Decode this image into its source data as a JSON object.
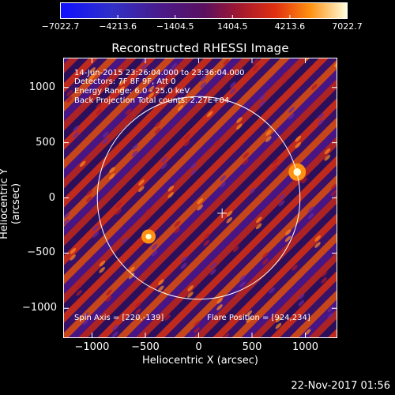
{
  "chart_data": {
    "type": "heatmap",
    "title": "Reconstructed RHESSI Image",
    "xlabel": "Heliocentric X (arcsec)",
    "ylabel": "Heliocentric Y (arcsec)",
    "xlim": [
      -1270,
      1300
    ],
    "ylim": [
      -1270,
      1270
    ],
    "xticks": [
      -1000,
      -500,
      0,
      500,
      1000
    ],
    "yticks": [
      1000,
      500,
      0,
      -500,
      -1000
    ],
    "xtick_labels": [
      "−1000",
      "−500",
      "0",
      "500",
      "1000"
    ],
    "ytick_labels": [
      "1000",
      "500",
      "0",
      "−500",
      "−1000"
    ],
    "colorbar": {
      "min": -7022.7,
      "max": 7022.7,
      "tick_values": [
        -7022.7,
        -4213.6,
        -1404.5,
        1404.5,
        4213.6,
        7022.7
      ],
      "tick_labels": [
        "−7022.7",
        "−4213.6",
        "−1404.5",
        "1404.5",
        "4213.6",
        "7022.7"
      ]
    },
    "solar_disk": {
      "center": [
        0,
        0
      ],
      "radius": 950
    },
    "spin_axis_marker": [
      220,
      -139
    ],
    "flare_position": [
      924,
      234
    ],
    "bright_sources": [
      {
        "x": 924,
        "y": 234,
        "value": 7022.7
      },
      {
        "x": -470,
        "y": -350,
        "value": 4200
      }
    ],
    "pattern": {
      "stripe_angle_deg": 45,
      "stripe_period_arcsec": 180
    },
    "annotations": [
      "14-Jun-2015 23:26:04.000 to 23:36:04.000",
      "Detectors: 7F 8F 9F, Att 0",
      "Energy Range: 6.0 - 25.0 keV",
      "Back Projection     Total counts: 2.27E+04",
      "Spin Axis = [220,-139]",
      "Flare Position = [924,234]"
    ]
  },
  "footer": {
    "date": "22-Nov-2017 01:56"
  }
}
